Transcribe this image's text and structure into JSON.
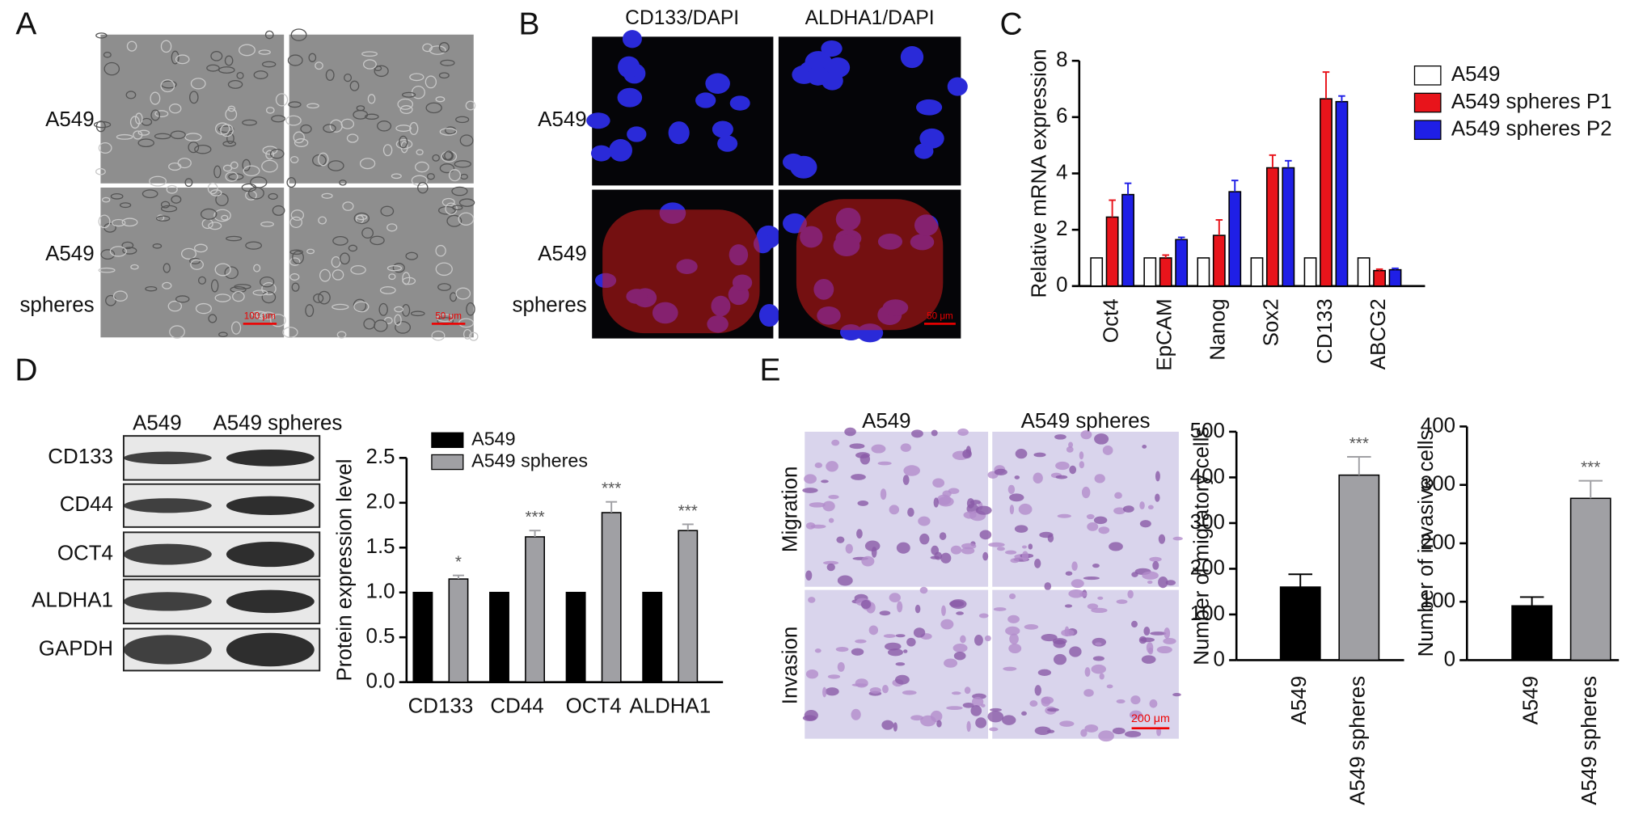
{
  "panels": {
    "A": {
      "letter": "A",
      "row_labels": [
        [
          "A549"
        ],
        [
          "A549",
          "spheres"
        ]
      ],
      "scale_bars": [
        "100 μm",
        "50 μm"
      ]
    },
    "B": {
      "letter": "B",
      "column_labels": [
        "CD133/DAPI",
        "ALDHA1/DAPI"
      ],
      "row_labels": [
        [
          "A549"
        ],
        [
          "A549",
          "spheres"
        ]
      ],
      "scale_bar": "50 μm"
    },
    "C": {
      "letter": "C"
    },
    "D": {
      "letter": "D",
      "blot_columns": [
        "A549",
        "A549 spheres"
      ],
      "blot_rows": [
        "CD133",
        "CD44",
        "OCT4",
        "ALDHA1",
        "GAPDH"
      ]
    },
    "E": {
      "letter": "E",
      "column_labels": [
        "A549",
        "A549 spheres"
      ],
      "row_labels": [
        "Migration",
        "Invasion"
      ],
      "scale_bar": "200 μm"
    }
  },
  "chart_data": [
    {
      "type": "bar",
      "y_label": "Relative mRNA expression",
      "categories": [
        "Oct4",
        "EpCAM",
        "Nanog",
        "Sox2",
        "CD133",
        "ABCG2"
      ],
      "series": [
        {
          "name": "A549",
          "color": "#ffffff",
          "values": [
            1,
            1,
            1,
            1,
            1,
            1
          ]
        },
        {
          "name": "A549 spheres P1",
          "color": "#e8141b",
          "values": [
            2.45,
            1.0,
            1.8,
            4.2,
            6.65,
            0.55
          ],
          "errors": [
            0.6,
            0.1,
            0.55,
            0.45,
            0.95,
            0.05
          ]
        },
        {
          "name": "A549 spheres P2",
          "color": "#1f1fe6",
          "values": [
            3.25,
            1.65,
            3.35,
            4.2,
            6.55,
            0.58
          ],
          "errors": [
            0.4,
            0.08,
            0.4,
            0.25,
            0.2,
            0.05
          ]
        }
      ],
      "ylim": [
        0,
        8
      ],
      "yticks": [
        0,
        2,
        4,
        6,
        8
      ],
      "legend": "upper right"
    },
    {
      "type": "bar",
      "y_label": "Protein expression level",
      "categories": [
        "CD133",
        "CD44",
        "OCT4",
        "ALDHA1"
      ],
      "series": [
        {
          "name": "A549",
          "color": "#000000",
          "values": [
            1,
            1,
            1,
            1
          ]
        },
        {
          "name": "A549 spheres",
          "color": "#a0a0a4",
          "values": [
            1.15,
            1.62,
            1.89,
            1.69
          ],
          "errors": [
            0.04,
            0.07,
            0.12,
            0.07
          ],
          "annotations": [
            "*",
            "***",
            "***",
            "***"
          ]
        }
      ],
      "ylim": [
        0,
        2.5
      ],
      "yticks": [
        {
          "value": 0,
          "label": "0.0"
        },
        {
          "value": 0.5,
          "label": "0.5"
        },
        {
          "value": 1,
          "label": "1.0"
        },
        {
          "value": 1.5,
          "label": "1.5"
        },
        {
          "value": 2,
          "label": "2.0"
        },
        {
          "value": 2.5,
          "label": "2.5"
        }
      ],
      "legend": "upper left"
    },
    {
      "type": "bar",
      "y_label": "Number of migratory cells",
      "categories": [
        "A549",
        "A549 spheres"
      ],
      "values": [
        160,
        405
      ],
      "errors": [
        28,
        40
      ],
      "colors": [
        "#000000",
        "#a0a0a4"
      ],
      "annotations": [
        null,
        "***"
      ],
      "ylim": [
        0,
        500
      ],
      "yticks": [
        0,
        100,
        200,
        300,
        400,
        500
      ]
    },
    {
      "type": "bar",
      "y_label": "Number of invasive cells",
      "categories": [
        "A549",
        "A549 spheres"
      ],
      "values": [
        93,
        277
      ],
      "errors": [
        15,
        30
      ],
      "colors": [
        "#000000",
        "#a0a0a4"
      ],
      "annotations": [
        null,
        "***"
      ],
      "ylim": [
        0,
        400
      ],
      "yticks": [
        0,
        100,
        200,
        300,
        400
      ]
    }
  ]
}
